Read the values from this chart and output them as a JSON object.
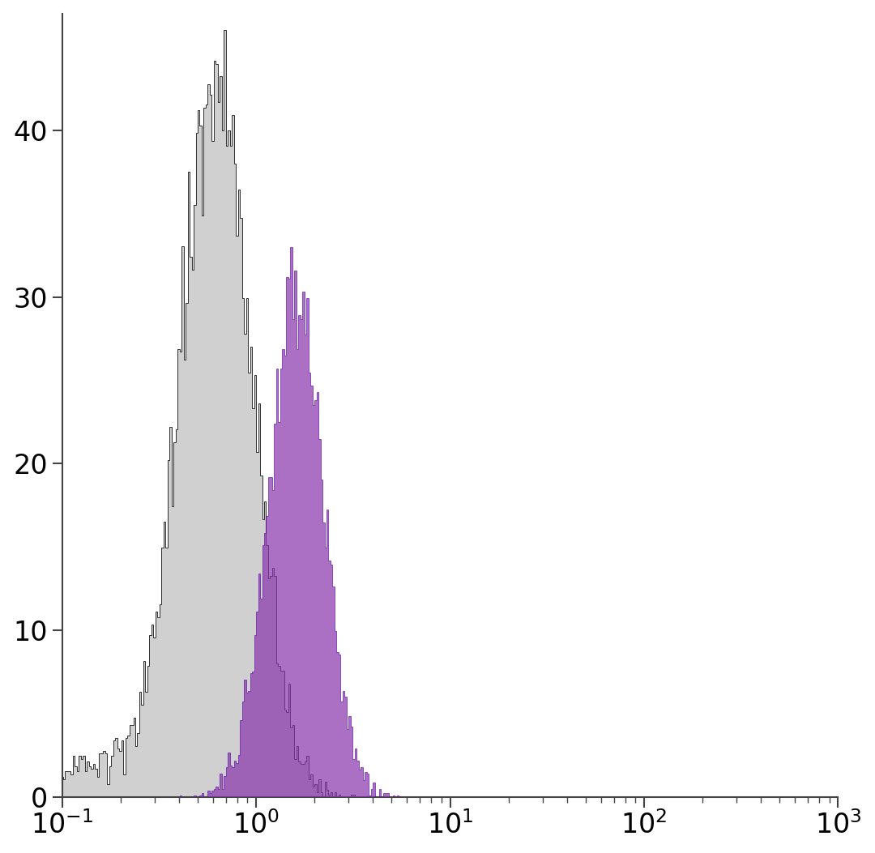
{
  "background_color": "#ffffff",
  "plot_bg_color": "#ffffff",
  "xlim_min": 0.1,
  "xlim_max": 1000,
  "ylim": [
    0,
    47
  ],
  "yticks": [
    0,
    10,
    20,
    30,
    40
  ],
  "gray_hist": {
    "fill_color": "#d0d0d0",
    "edge_color": "#111111",
    "peak_log": -0.2,
    "peak_height": 46,
    "log_std": 0.18,
    "n_events": 12000,
    "seed": 42
  },
  "purple_hist": {
    "fill_color": "#8833aa",
    "fill_alpha": 0.7,
    "edge_color": "#5500aa",
    "peak_log": 0.2,
    "peak_height": 33,
    "log_std": 0.14,
    "n_events": 8000,
    "seed": 99
  },
  "n_bins": 400,
  "bin_log_min": -1.1,
  "bin_log_max": 3.05
}
